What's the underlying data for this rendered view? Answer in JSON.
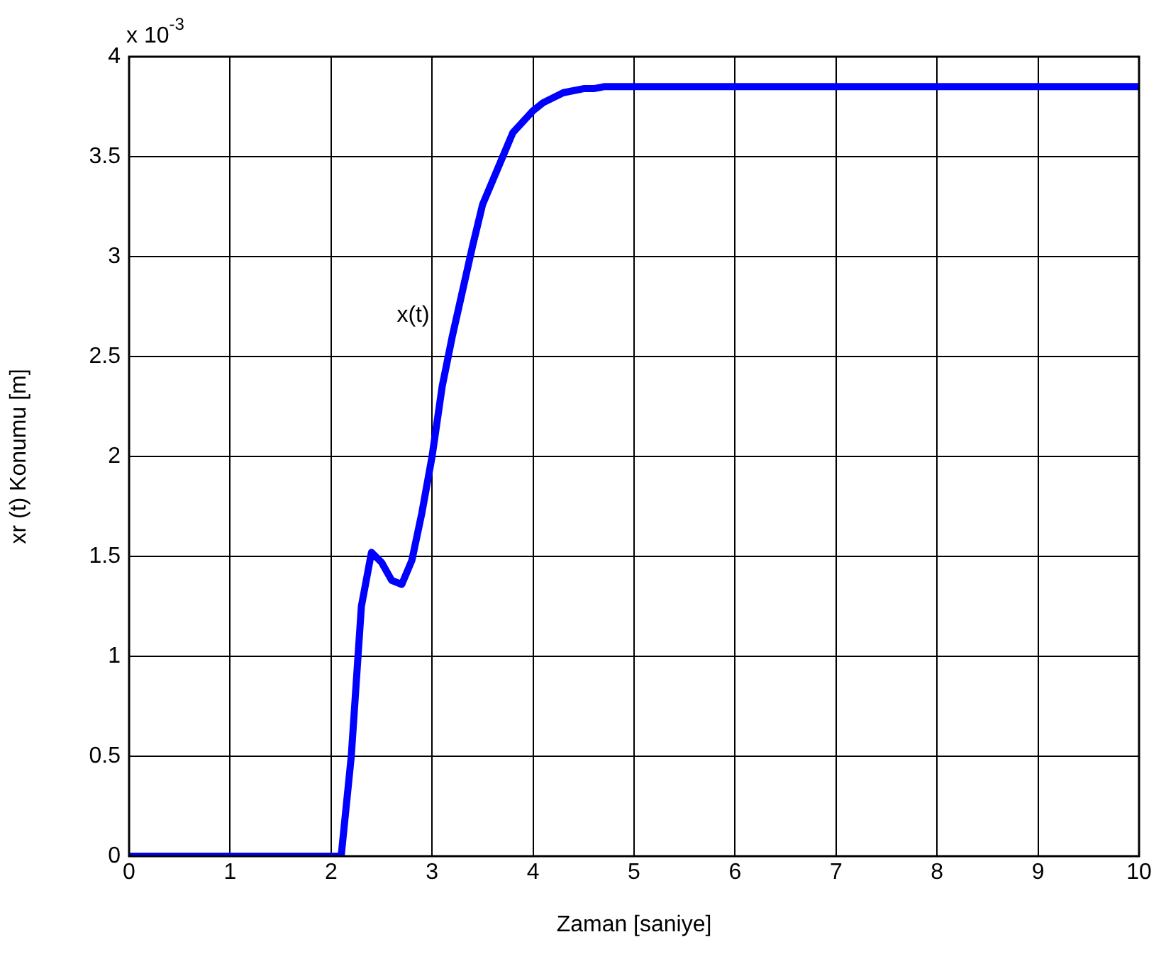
{
  "chart_data": {
    "type": "line",
    "xlabel": "Zaman [saniye]",
    "ylabel": "xr (t) Konumu [m]",
    "annotations": [
      "x 10$^{-3}$"
    ],
    "x": [
      0,
      2.1,
      2.2,
      2.3,
      2.4,
      2.5,
      2.6,
      2.7,
      2.8,
      2.9,
      3,
      3.1,
      3.2,
      3.4,
      3.5,
      3.7,
      3.8,
      4,
      4.1,
      4.3,
      4.5,
      4.6,
      4.7,
      10
    ],
    "series": [
      {
        "name": "x(t)",
        "color": "#0000ff",
        "values": [
          0,
          0,
          0.5,
          1.25,
          1.52,
          1.47,
          1.38,
          1.36,
          1.48,
          1.72,
          2.0,
          2.35,
          2.6,
          3.05,
          3.26,
          3.5,
          3.62,
          3.73,
          3.77,
          3.82,
          3.84,
          3.84,
          3.85,
          3.85
        ]
      }
    ],
    "xlim": [
      0,
      10
    ],
    "xticks": [
      0,
      1,
      2,
      3,
      4,
      5,
      6,
      7,
      8,
      9,
      10
    ],
    "ylim": [
      0,
      4
    ],
    "yticks": [
      0,
      0.5,
      1,
      1.5,
      2,
      2.5,
      3,
      3.5,
      4
    ],
    "grid": true,
    "legend": false,
    "marker": "none",
    "line_style": "solid"
  }
}
